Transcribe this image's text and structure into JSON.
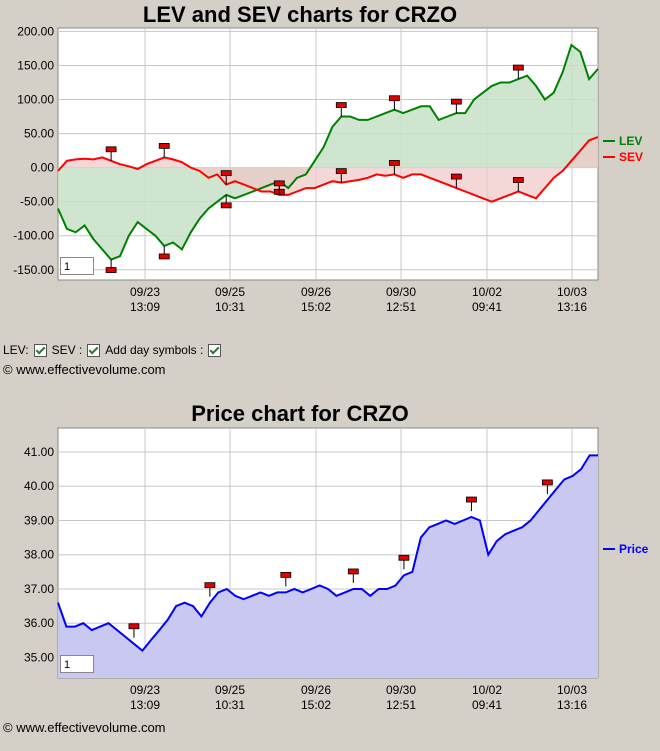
{
  "colors": {
    "lev": "#008000",
    "sev": "#ff0000",
    "price": "#0000ff",
    "lev_fill": "#c8e0c8",
    "sev_fill": "#f0c8c8",
    "neutral_fill": "#d8c8b8",
    "price_fill": "#c8c8f0",
    "plot_bg": "#ffffff",
    "page_bg": "#d4d0c8"
  },
  "options": {
    "lev_label": "LEV:",
    "sev_label": "SEV :",
    "day_symbols_label": "Add day symbols :"
  },
  "copyright": "© www.effectivevolume.com",
  "chart_data": [
    {
      "type": "line",
      "title": "LEV and SEV charts for CRZO",
      "zoom_value": "1",
      "x_tick_labels": [
        [
          "09/23",
          "13:09"
        ],
        [
          "09/25",
          "10:31"
        ],
        [
          "09/26",
          "15:02"
        ],
        [
          "09/30",
          "12:51"
        ],
        [
          "10/02",
          "09:41"
        ],
        [
          "10/03",
          "13:16"
        ]
      ],
      "y_tick_labels": [
        "200.00",
        "150.00",
        "100.00",
        "50.00",
        "0.00",
        "-50.00",
        "-100.00",
        "-150.00"
      ],
      "ylim": [
        -165,
        205
      ],
      "legend_position": "right",
      "series": [
        {
          "name": "LEV",
          "values": [
            -60,
            -90,
            -95,
            -85,
            -105,
            -120,
            -135,
            -130,
            -100,
            -80,
            -90,
            -100,
            -115,
            -110,
            -120,
            -95,
            -75,
            -60,
            -50,
            -40,
            -45,
            -40,
            -35,
            -30,
            -25,
            -20,
            -30,
            -15,
            -10,
            10,
            30,
            60,
            75,
            75,
            70,
            70,
            75,
            80,
            85,
            80,
            85,
            90,
            90,
            70,
            75,
            80,
            80,
            100,
            110,
            120,
            125,
            125,
            130,
            135,
            120,
            100,
            110,
            140,
            180,
            170,
            130,
            145
          ]
        },
        {
          "name": "SEV",
          "values": [
            -5,
            10,
            12,
            13,
            12,
            15,
            10,
            5,
            2,
            -2,
            5,
            10,
            15,
            12,
            8,
            0,
            -5,
            -15,
            -10,
            -25,
            -20,
            -25,
            -30,
            -35,
            -35,
            -40,
            -40,
            -35,
            -30,
            -30,
            -25,
            -20,
            -22,
            -20,
            -18,
            -15,
            -10,
            -12,
            -10,
            -15,
            -10,
            -10,
            -15,
            -20,
            -25,
            -30,
            -35,
            -40,
            -45,
            -50,
            -45,
            -40,
            -35,
            -40,
            -45,
            -30,
            -15,
            -5,
            10,
            25,
            40,
            45
          ]
        }
      ]
    },
    {
      "type": "line",
      "title": "Price chart for CRZO",
      "zoom_value": "1",
      "x_tick_labels": [
        [
          "09/23",
          "13:09"
        ],
        [
          "09/25",
          "10:31"
        ],
        [
          "09/26",
          "15:02"
        ],
        [
          "09/30",
          "12:51"
        ],
        [
          "10/02",
          "09:41"
        ],
        [
          "10/03",
          "13:16"
        ]
      ],
      "y_tick_labels": [
        "41.00",
        "40.00",
        "39.00",
        "38.00",
        "37.00",
        "36.00",
        "35.00"
      ],
      "ylim": [
        34.4,
        41.7
      ],
      "legend_position": "right",
      "series": [
        {
          "name": "Price",
          "values": [
            36.6,
            35.9,
            35.9,
            36.0,
            35.8,
            35.9,
            36.0,
            35.8,
            35.6,
            35.4,
            35.2,
            35.5,
            35.8,
            36.1,
            36.5,
            36.6,
            36.5,
            36.2,
            36.6,
            36.9,
            37.0,
            36.8,
            36.7,
            36.8,
            36.9,
            36.8,
            36.9,
            36.9,
            37.0,
            36.9,
            37.0,
            37.1,
            37.0,
            36.8,
            36.9,
            37.0,
            37.0,
            36.8,
            37.0,
            37.0,
            37.1,
            37.4,
            37.5,
            38.5,
            38.8,
            38.9,
            39.0,
            38.9,
            39.0,
            39.1,
            39.0,
            38.0,
            38.4,
            38.6,
            38.7,
            38.8,
            39.0,
            39.3,
            39.6,
            39.9,
            40.2,
            40.3,
            40.5,
            40.9,
            40.9
          ]
        }
      ]
    }
  ]
}
